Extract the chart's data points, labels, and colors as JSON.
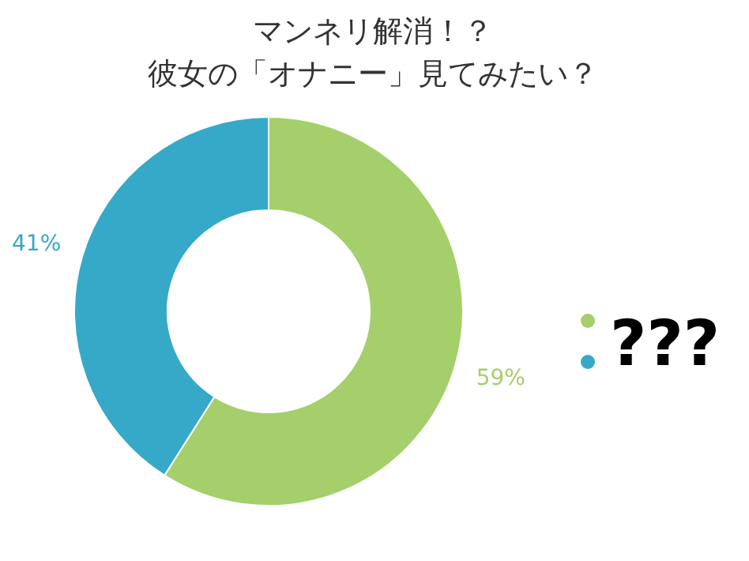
{
  "chart_data": {
    "type": "donut",
    "title": "マンネリ解消！？",
    "subtitle": "彼女の「オナニー」見てみたい？",
    "categories": [
      null,
      null
    ],
    "values": [
      59,
      41
    ],
    "colors": [
      "#a4cf6a",
      "#36a9c9"
    ],
    "value_labels": [
      "59%",
      "41%"
    ],
    "annotations": [
      "???"
    ]
  }
}
